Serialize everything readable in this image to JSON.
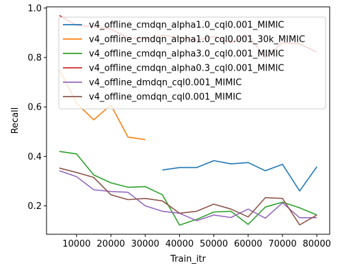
{
  "chart_data": {
    "type": "line",
    "title": "",
    "xlabel": "Train_itr",
    "ylabel": "Recall",
    "xlim": [
      1250,
      83750
    ],
    "ylim": [
      0.085,
      1.005
    ],
    "xticks": [
      10000,
      20000,
      30000,
      40000,
      50000,
      60000,
      70000,
      80000
    ],
    "xtick_labels": [
      "10000",
      "20000",
      "30000",
      "40000",
      "50000",
      "60000",
      "70000",
      "80000"
    ],
    "yticks": [
      0.2,
      0.4,
      0.6,
      0.8,
      1.0
    ],
    "ytick_labels": [
      "0.2",
      "0.4",
      "0.6",
      "0.8",
      "1.0"
    ],
    "grid": false,
    "legend_position": "top-right",
    "x": [
      5000,
      10000,
      15000,
      20000,
      25000,
      30000,
      35000,
      40000,
      45000,
      50000,
      55000,
      60000,
      65000,
      70000,
      75000,
      80000
    ],
    "series": [
      {
        "name": "v4_offline_cmdqn_alpha1.0_cql0.001_MIMIC",
        "color": "#1f77b4",
        "values": [
          null,
          null,
          null,
          null,
          null,
          null,
          0.345,
          0.355,
          0.355,
          0.383,
          0.37,
          0.375,
          0.342,
          0.368,
          0.26,
          0.358
        ]
      },
      {
        "name": "v4_offline_cmdqn_alpha1.0_cql0.001_30k_MIMIC",
        "color": "#ff7f0e",
        "values": [
          0.75,
          0.615,
          0.548,
          0.608,
          0.478,
          0.468,
          null,
          null,
          null,
          null,
          null,
          null,
          null,
          null,
          null,
          null
        ]
      },
      {
        "name": "v4_offline_cmdqn_alpha3.0_cql0.001_MIMIC",
        "color": "#2ca02c",
        "values": [
          0.42,
          0.41,
          0.325,
          0.293,
          0.275,
          0.278,
          0.245,
          0.122,
          0.145,
          0.175,
          0.178,
          0.125,
          0.195,
          0.215,
          0.192,
          0.163
        ]
      },
      {
        "name": "v4_offline_cmdqn_alpha0.3_cql0.001_MIMIC",
        "color": "#d62728",
        "values": [
          0.97,
          0.93,
          0.925,
          0.915,
          0.88,
          0.875,
          0.89,
          0.88,
          0.87,
          0.885,
          0.86,
          0.89,
          0.8,
          0.86,
          0.855,
          0.822
        ]
      },
      {
        "name": "v4_offline_dmdqn_cql0.001_MIMIC",
        "color": "#9467bd",
        "values": [
          0.342,
          0.318,
          0.265,
          0.258,
          0.255,
          0.2,
          0.178,
          0.17,
          0.14,
          0.163,
          0.153,
          0.187,
          0.15,
          0.212,
          0.152,
          0.152
        ]
      },
      {
        "name": "v4_offline_omdqn_cql0.001_MIMIC",
        "color": "#8c564b",
        "values": [
          0.353,
          0.335,
          0.315,
          0.245,
          0.225,
          0.23,
          0.22,
          0.17,
          0.178,
          0.207,
          0.187,
          0.155,
          0.233,
          0.23,
          0.123,
          0.163
        ]
      }
    ]
  }
}
